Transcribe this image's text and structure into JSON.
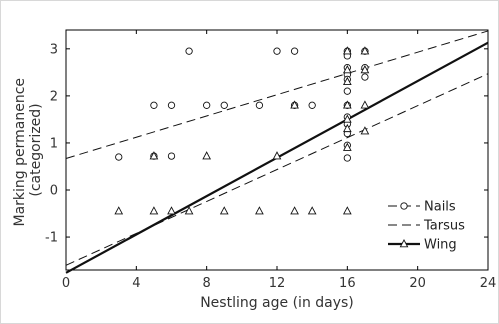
{
  "chart_data": {
    "type": "scatter",
    "xlabel": "Nestling age (in days)",
    "ylabel": [
      "Marking permanence",
      "(categorized)"
    ],
    "xlim": [
      0,
      24
    ],
    "ylim": [
      -1.7,
      3.4
    ],
    "xticks": [
      0,
      4,
      8,
      12,
      16,
      20,
      24
    ],
    "yticks": [
      -1,
      0,
      1,
      2,
      3
    ],
    "legend_position": "bottom-right",
    "series": [
      {
        "name": "Nails",
        "marker": "circle",
        "line_style": "dashed",
        "line": {
          "x": [
            0,
            24
          ],
          "y": [
            0.67,
            3.38
          ]
        },
        "points": [
          [
            3,
            0.7
          ],
          [
            5,
            1.8
          ],
          [
            5,
            0.72
          ],
          [
            6,
            1.8
          ],
          [
            6,
            0.72
          ],
          [
            7,
            2.95
          ],
          [
            8,
            1.8
          ],
          [
            9,
            1.8
          ],
          [
            11,
            1.8
          ],
          [
            12,
            2.95
          ],
          [
            13,
            2.95
          ],
          [
            13,
            1.8
          ],
          [
            14,
            1.8
          ],
          [
            16,
            2.95
          ],
          [
            16,
            2.85
          ],
          [
            16,
            2.6
          ],
          [
            16,
            2.45
          ],
          [
            16,
            2.35
          ],
          [
            16,
            2.1
          ],
          [
            16,
            1.8
          ],
          [
            16,
            1.55
          ],
          [
            16,
            1.4
          ],
          [
            16,
            1.2
          ],
          [
            16,
            0.95
          ],
          [
            16,
            0.68
          ],
          [
            17,
            2.95
          ],
          [
            17,
            2.6
          ],
          [
            17,
            2.4
          ]
        ]
      },
      {
        "name": "Tarsus",
        "marker": "none",
        "line_style": "dashed",
        "line": {
          "x": [
            0,
            24
          ],
          "y": [
            -1.6,
            2.47
          ]
        },
        "points": []
      },
      {
        "name": "Wing",
        "marker": "triangle",
        "line_style": "solid",
        "line": {
          "x": [
            0,
            24
          ],
          "y": [
            -1.76,
            3.13
          ]
        },
        "points": [
          [
            3,
            -0.45
          ],
          [
            5,
            0.72
          ],
          [
            5,
            -0.45
          ],
          [
            6,
            -0.45
          ],
          [
            7,
            -0.45
          ],
          [
            8,
            0.72
          ],
          [
            9,
            -0.45
          ],
          [
            11,
            -0.45
          ],
          [
            12,
            0.72
          ],
          [
            13,
            1.8
          ],
          [
            13,
            -0.45
          ],
          [
            14,
            -0.45
          ],
          [
            16,
            2.95
          ],
          [
            16,
            2.55
          ],
          [
            16,
            2.3
          ],
          [
            16,
            1.8
          ],
          [
            16,
            1.5
          ],
          [
            16,
            1.3
          ],
          [
            16,
            0.9
          ],
          [
            16,
            -0.45
          ],
          [
            17,
            2.95
          ],
          [
            17,
            2.55
          ],
          [
            17,
            1.8
          ],
          [
            17,
            1.25
          ]
        ]
      }
    ]
  }
}
